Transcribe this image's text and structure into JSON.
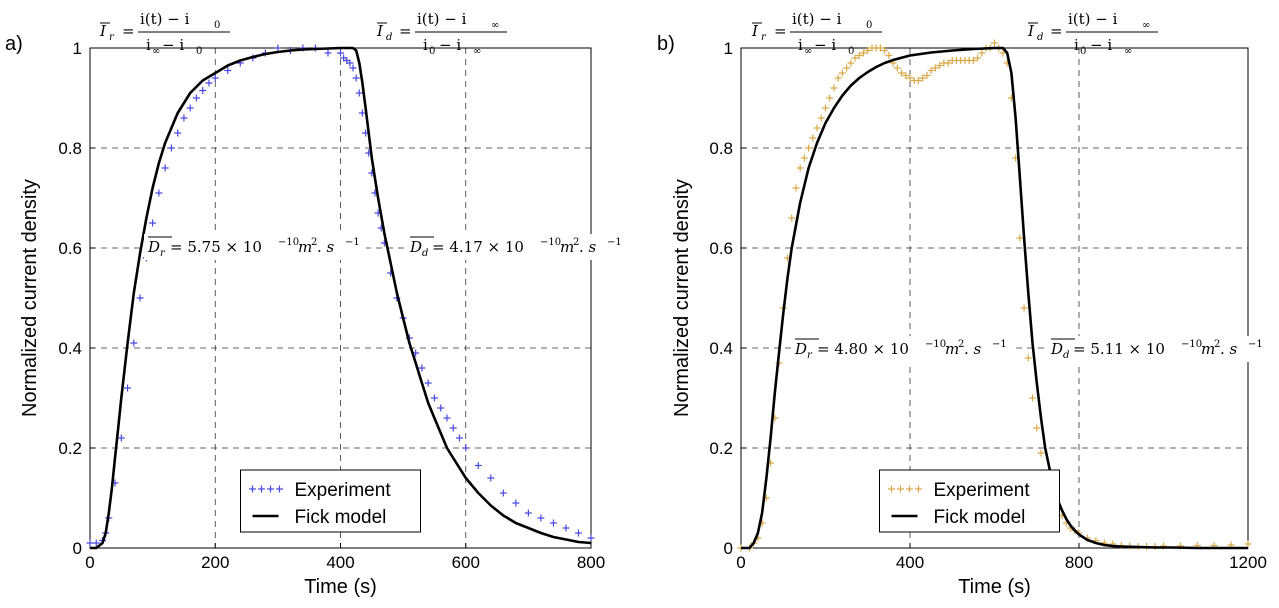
{
  "chart_data": [
    {
      "type": "line",
      "panel_label": "a)",
      "xlabel": "Time (s)",
      "ylabel": "Normalized current density",
      "xlim": [
        0,
        800
      ],
      "ylim": [
        0,
        1
      ],
      "xticks": [
        0,
        200,
        400,
        600,
        800
      ],
      "yticks": [
        0,
        0.2,
        0.4,
        0.6,
        0.8,
        1
      ],
      "grid": "dashed",
      "legend_position": "bottom-center",
      "colors": {
        "experiment": "#4a4ae0",
        "fick": "#000000"
      },
      "annotations": {
        "ir_formula": {
          "lhs": "I",
          "sub": "r",
          "num": "i(t) − i",
          "num_sub": "0",
          "den": "i",
          "den_sub": "∞",
          "den_rest": " − i",
          "den_sub2": "0"
        },
        "id_formula": {
          "lhs": "I",
          "sub": "d",
          "num": "i(t) − i",
          "num_sub": "∞",
          "den": "i",
          "den_sub": "0",
          "den_rest": " − i",
          "den_sub2": "∞"
        },
        "dr_value": {
          "sub": "r",
          "text": " = 5.75 × 10",
          "exp": "−10",
          "unit": "m",
          "unit_exp": "2",
          "unit2": ". s",
          "unit2_exp": "−1"
        },
        "dd_value": {
          "sub": "d",
          "text": " = 4.17 × 10",
          "exp": "−10",
          "unit": "m",
          "unit_exp": "2",
          "unit2": ". s",
          "unit2_exp": "−1"
        }
      },
      "series": [
        {
          "name": "Experiment",
          "marker": "+",
          "x": [
            0,
            10,
            20,
            25,
            30,
            40,
            50,
            60,
            70,
            80,
            90,
            100,
            110,
            120,
            130,
            140,
            150,
            160,
            170,
            180,
            190,
            200,
            220,
            240,
            260,
            280,
            300,
            320,
            340,
            360,
            380,
            400,
            405,
            410,
            415,
            420,
            425,
            430,
            435,
            440,
            445,
            450,
            455,
            460,
            465,
            470,
            480,
            490,
            500,
            510,
            520,
            530,
            540,
            550,
            560,
            570,
            580,
            590,
            600,
            620,
            640,
            660,
            680,
            700,
            720,
            740,
            760,
            780,
            800
          ],
          "y": [
            0.01,
            0.01,
            0.015,
            0.03,
            0.06,
            0.13,
            0.22,
            0.32,
            0.41,
            0.5,
            0.58,
            0.65,
            0.71,
            0.76,
            0.8,
            0.83,
            0.86,
            0.88,
            0.9,
            0.915,
            0.93,
            0.94,
            0.955,
            0.97,
            0.98,
            0.99,
            1.0,
            0.995,
            1.0,
            1.0,
            0.99,
            0.99,
            0.98,
            0.975,
            0.97,
            0.96,
            0.94,
            0.91,
            0.87,
            0.83,
            0.79,
            0.75,
            0.71,
            0.67,
            0.64,
            0.61,
            0.55,
            0.5,
            0.46,
            0.42,
            0.39,
            0.36,
            0.33,
            0.3,
            0.28,
            0.26,
            0.24,
            0.22,
            0.2,
            0.165,
            0.14,
            0.11,
            0.09,
            0.07,
            0.06,
            0.05,
            0.04,
            0.03,
            0.02
          ]
        },
        {
          "name": "Fick model",
          "marker": "line",
          "x": [
            0,
            10,
            20,
            25,
            30,
            35,
            40,
            45,
            50,
            60,
            70,
            80,
            90,
            100,
            110,
            120,
            140,
            160,
            180,
            200,
            220,
            240,
            260,
            280,
            300,
            320,
            340,
            360,
            380,
            400,
            410,
            420,
            425,
            430,
            435,
            440,
            445,
            450,
            455,
            460,
            470,
            480,
            490,
            500,
            510,
            520,
            530,
            540,
            550,
            560,
            570,
            580,
            600,
            620,
            640,
            660,
            680,
            700,
            720,
            740,
            760,
            780,
            800
          ],
          "y": [
            0,
            0,
            0.01,
            0.03,
            0.07,
            0.12,
            0.18,
            0.24,
            0.3,
            0.41,
            0.51,
            0.59,
            0.66,
            0.72,
            0.77,
            0.81,
            0.87,
            0.91,
            0.935,
            0.95,
            0.965,
            0.975,
            0.982,
            0.988,
            0.992,
            0.995,
            0.997,
            0.998,
            0.999,
            1.0,
            1.0,
            1.0,
            0.995,
            0.97,
            0.93,
            0.88,
            0.83,
            0.78,
            0.74,
            0.7,
            0.63,
            0.57,
            0.51,
            0.46,
            0.41,
            0.37,
            0.33,
            0.29,
            0.26,
            0.23,
            0.2,
            0.18,
            0.14,
            0.11,
            0.085,
            0.065,
            0.05,
            0.04,
            0.03,
            0.022,
            0.017,
            0.012,
            0.01
          ]
        }
      ]
    },
    {
      "type": "line",
      "panel_label": "b)",
      "xlabel": "Time (s)",
      "ylabel": "Normalized current density",
      "xlim": [
        0,
        1200
      ],
      "ylim": [
        0,
        1
      ],
      "xticks": [
        0,
        400,
        800,
        1200
      ],
      "yticks": [
        0,
        0.2,
        0.4,
        0.6,
        0.8,
        1
      ],
      "grid": "dashed",
      "legend_position": "bottom-center",
      "colors": {
        "experiment": "#d9a94a",
        "fick": "#000000"
      },
      "annotations": {
        "ir_formula": {
          "lhs": "I",
          "sub": "r",
          "num": "i(t) − i",
          "num_sub": "0",
          "den": "i",
          "den_sub": "∞",
          "den_rest": " − i",
          "den_sub2": "0"
        },
        "id_formula": {
          "lhs": "I",
          "sub": "d",
          "num": "i(t) − i",
          "num_sub": "∞",
          "den": "i",
          "den_sub": "0",
          "den_rest": " − i",
          "den_sub2": "∞"
        },
        "dr_value": {
          "sub": "r",
          "text": " = 4.80 × 10",
          "exp": "−10",
          "unit": "m",
          "unit_exp": "2",
          "unit2": ". s",
          "unit2_exp": "−1"
        },
        "dd_value": {
          "sub": "d",
          "text": " = 5.11 × 10",
          "exp": "−10",
          "unit": "m",
          "unit_exp": "2",
          "unit2": ". s",
          "unit2_exp": "−1"
        }
      },
      "series": [
        {
          "name": "Experiment",
          "marker": "+",
          "x": [
            0,
            20,
            30,
            40,
            50,
            60,
            70,
            80,
            90,
            100,
            110,
            120,
            130,
            140,
            150,
            160,
            170,
            180,
            190,
            200,
            210,
            220,
            230,
            240,
            250,
            260,
            270,
            280,
            290,
            300,
            310,
            320,
            330,
            340,
            350,
            360,
            370,
            380,
            390,
            400,
            410,
            420,
            430,
            440,
            450,
            460,
            470,
            480,
            490,
            500,
            510,
            520,
            530,
            540,
            550,
            560,
            570,
            580,
            590,
            600,
            610,
            620,
            630,
            640,
            650,
            660,
            670,
            680,
            690,
            700,
            710,
            720,
            730,
            740,
            750,
            760,
            770,
            780,
            790,
            800,
            820,
            840,
            860,
            880,
            900,
            920,
            940,
            960,
            980,
            1000,
            1040,
            1080,
            1120,
            1160,
            1200
          ],
          "y": [
            0,
            0,
            0.01,
            0.02,
            0.05,
            0.1,
            0.17,
            0.26,
            0.37,
            0.48,
            0.58,
            0.66,
            0.72,
            0.76,
            0.78,
            0.8,
            0.82,
            0.84,
            0.86,
            0.88,
            0.9,
            0.92,
            0.94,
            0.95,
            0.96,
            0.97,
            0.98,
            0.985,
            0.99,
            0.995,
            1.0,
            1.0,
            1.0,
            0.995,
            0.985,
            0.97,
            0.96,
            0.95,
            0.945,
            0.94,
            0.935,
            0.935,
            0.94,
            0.945,
            0.955,
            0.96,
            0.965,
            0.97,
            0.97,
            0.975,
            0.975,
            0.975,
            0.975,
            0.975,
            0.975,
            0.98,
            0.99,
            1.0,
            1.0,
            1.01,
            1.0,
            0.99,
            0.97,
            0.9,
            0.78,
            0.62,
            0.48,
            0.38,
            0.3,
            0.24,
            0.19,
            0.15,
            0.12,
            0.1,
            0.08,
            0.065,
            0.05,
            0.04,
            0.035,
            0.03,
            0.02,
            0.015,
            0.01,
            0.008,
            0.005,
            0.004,
            0.003,
            0.003,
            0.003,
            0.004,
            0.004,
            0.005,
            0.005,
            0.006,
            0.008
          ]
        },
        {
          "name": "Fick model",
          "marker": "line",
          "x": [
            0,
            20,
            30,
            40,
            50,
            60,
            70,
            80,
            90,
            100,
            110,
            120,
            140,
            160,
            180,
            200,
            220,
            240,
            260,
            280,
            300,
            320,
            340,
            360,
            400,
            450,
            500,
            550,
            600,
            620,
            630,
            640,
            650,
            660,
            670,
            680,
            690,
            700,
            710,
            720,
            730,
            740,
            750,
            760,
            770,
            780,
            790,
            800,
            820,
            840,
            860,
            880,
            900,
            940,
            980,
            1020,
            1080,
            1140,
            1200
          ],
          "y": [
            0,
            0,
            0.01,
            0.03,
            0.07,
            0.14,
            0.22,
            0.31,
            0.39,
            0.47,
            0.54,
            0.6,
            0.69,
            0.76,
            0.81,
            0.85,
            0.88,
            0.905,
            0.925,
            0.94,
            0.952,
            0.962,
            0.97,
            0.976,
            0.985,
            0.991,
            0.995,
            0.998,
            1.0,
            1.0,
            0.99,
            0.95,
            0.86,
            0.74,
            0.62,
            0.51,
            0.41,
            0.33,
            0.26,
            0.2,
            0.16,
            0.12,
            0.095,
            0.075,
            0.058,
            0.045,
            0.035,
            0.027,
            0.016,
            0.01,
            0.006,
            0.004,
            0.003,
            0.002,
            0.001,
            0.001,
            0.0,
            0.0,
            0.0
          ]
        }
      ]
    }
  ]
}
